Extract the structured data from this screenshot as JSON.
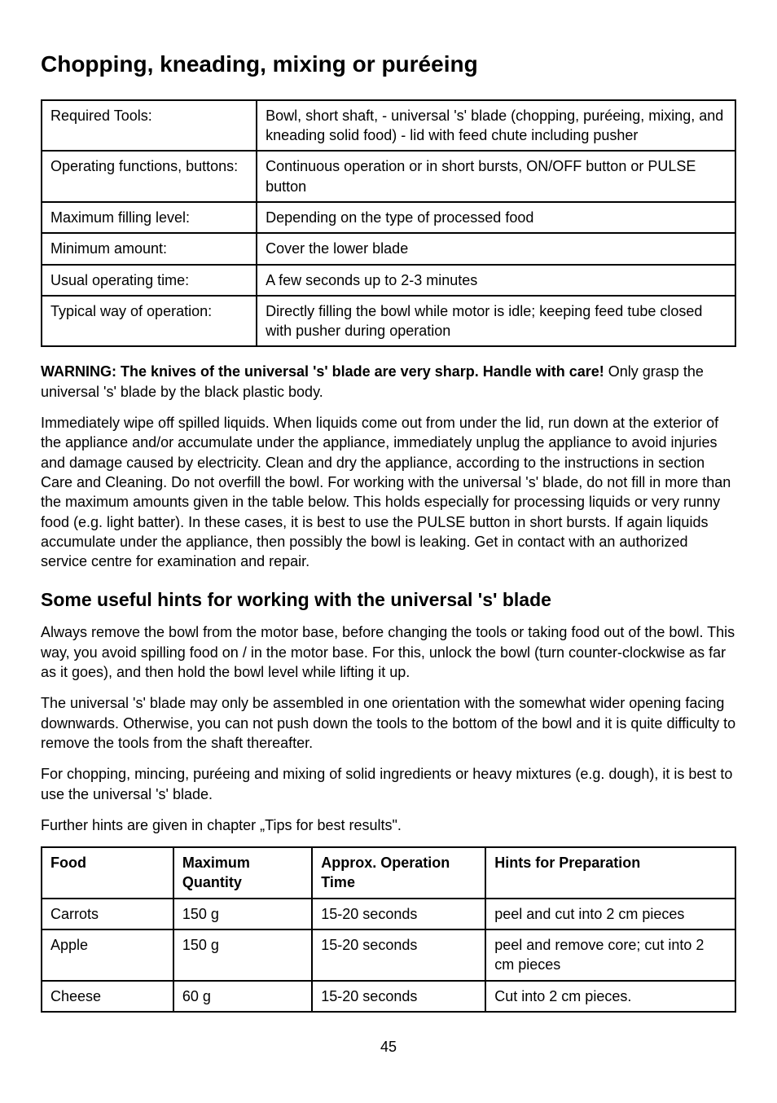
{
  "heading": "Chopping, kneading, mixing or puréeing",
  "tools_table": {
    "rows": [
      {
        "label": "Required Tools:",
        "value": "Bowl, short shaft, - universal 's' blade (chopping, puréeing, mixing, and kneading solid food) - lid with feed chute including pusher"
      },
      {
        "label": "Operating functions, buttons:",
        "value": "Continuous operation or in short bursts, ON/OFF button or PULSE button"
      },
      {
        "label": "Maximum filling level:",
        "value": "Depending on the type of processed food"
      },
      {
        "label": "Minimum amount:",
        "value": "Cover the lower blade"
      },
      {
        "label": "Usual operating time:",
        "value": "A few seconds up to 2-3 minutes"
      },
      {
        "label": "Typical way of operation:",
        "value": "Directly filling the bowl while motor is idle; keeping feed tube closed with pusher during operation"
      }
    ]
  },
  "warning_bold": "WARNING: The knives of the universal 's' blade are very sharp. Handle with care!",
  "warning_rest": " Only grasp the universal 's' blade by the black plastic body.",
  "para_wipe": "Immediately wipe off spilled liquids. When liquids come out from under the lid, run down at the exterior of the appliance and/or accumulate under the appliance, immediately unplug the appliance to avoid injuries and damage caused by electricity. Clean and dry the appliance, according to the instructions in section Care and Cleaning. Do not overfill the bowl. For working with the universal 's' blade, do not fill in more than the maximum amounts given in the table below. This holds especially for processing liquids or very runny food (e.g. light batter). In these cases, it is best to use the PULSE button in short bursts. If again liquids accumulate under the appliance, then possibly the bowl is leaking. Get in contact with an authorized service centre for examination and repair.",
  "hints_heading": "Some useful hints for working with the universal 's' blade",
  "para_remove": "Always remove the bowl from the motor base, before changing the tools or taking food out of the bowl. This way, you avoid spilling food on / in the motor base. For this, unlock the bowl (turn counter-clockwise as far as it goes), and then hold the bowl level while lifting it up.",
  "para_orient": "The universal 's' blade may only be assembled in one orientation with the somewhat wider opening facing downwards. Otherwise, you can not push down the tools to the bottom of the bowl and it is quite difficulty to remove the tools from the shaft thereafter.",
  "para_chop": "For chopping, mincing, puréeing and mixing of solid ingredients or heavy mixtures (e.g. dough), it is best to use the universal 's' blade.",
  "para_tips": "Further hints are given in chapter „Tips for best results\".",
  "food_table": {
    "headers": [
      "Food",
      "Maximum Quantity",
      "Approx. Operation Time",
      "Hints for Preparation"
    ],
    "rows": [
      {
        "food": "Carrots",
        "qty": "150 g",
        "time": "15-20 seconds",
        "hint": "peel and cut into 2 cm pieces"
      },
      {
        "food": "Apple",
        "qty": "150 g",
        "time": "15-20 seconds",
        "hint": "peel and remove core; cut into 2 cm pieces"
      },
      {
        "food": "Cheese",
        "qty": "60 g",
        "time": "15-20 seconds",
        "hint": "Cut into 2 cm pieces."
      }
    ]
  },
  "page_number": "45"
}
